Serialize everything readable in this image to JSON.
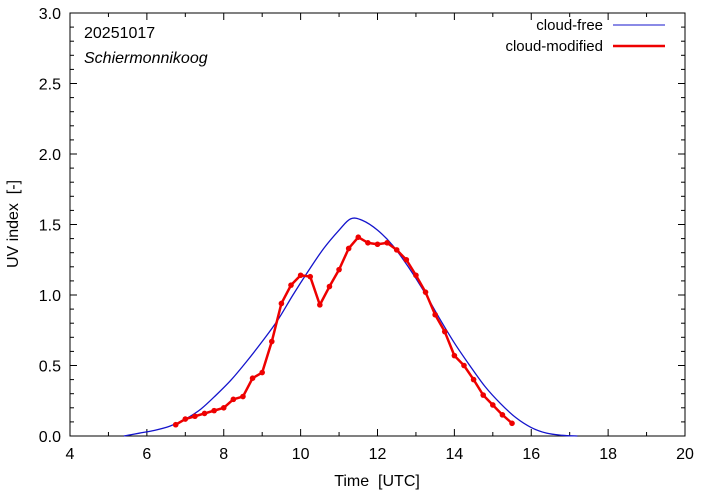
{
  "chart_data": {
    "type": "line",
    "date_label": "20251017",
    "station": "Schiermonnikoog",
    "xlabel": "Time  [UTC]",
    "ylabel": "UV index  [-]",
    "xlim": [
      4,
      20
    ],
    "ylim": [
      0,
      3.0
    ],
    "x_ticks": [
      "4",
      "6",
      "8",
      "10",
      "12",
      "14",
      "16",
      "18",
      "20"
    ],
    "y_ticks": [
      "0.0",
      "0.5",
      "1.0",
      "1.5",
      "2.0",
      "2.5",
      "3.0"
    ],
    "legend_position": "top-right",
    "colors": {
      "cloud_free": "#1414cc",
      "cloud_modified": "#ee0000"
    },
    "series": [
      {
        "name": "cloud-free",
        "style": "line",
        "x": [
          5.4,
          5.8,
          6.2,
          6.6,
          7.0,
          7.4,
          7.8,
          8.2,
          8.6,
          9.0,
          9.4,
          9.8,
          10.2,
          10.6,
          11.0,
          11.3,
          11.6,
          12.0,
          12.4,
          12.8,
          13.2,
          13.6,
          14.0,
          14.4,
          14.8,
          15.2,
          15.6,
          16.0,
          16.4,
          16.8,
          17.2
        ],
        "values": [
          0.0,
          0.02,
          0.04,
          0.07,
          0.12,
          0.19,
          0.29,
          0.4,
          0.53,
          0.67,
          0.82,
          1.0,
          1.17,
          1.33,
          1.46,
          1.54,
          1.53,
          1.46,
          1.35,
          1.2,
          1.03,
          0.84,
          0.66,
          0.5,
          0.35,
          0.23,
          0.13,
          0.06,
          0.02,
          0.005,
          0.0
        ]
      },
      {
        "name": "cloud-modified",
        "style": "line+markers",
        "x": [
          6.75,
          7.0,
          7.25,
          7.5,
          7.75,
          8.0,
          8.25,
          8.5,
          8.75,
          9.0,
          9.25,
          9.5,
          9.75,
          10.0,
          10.25,
          10.5,
          10.75,
          11.0,
          11.25,
          11.5,
          11.75,
          12.0,
          12.25,
          12.5,
          12.75,
          13.0,
          13.25,
          13.5,
          13.75,
          14.0,
          14.25,
          14.5,
          14.75,
          15.0,
          15.25,
          15.5
        ],
        "values": [
          0.08,
          0.12,
          0.14,
          0.16,
          0.18,
          0.2,
          0.26,
          0.28,
          0.41,
          0.45,
          0.67,
          0.94,
          1.07,
          1.14,
          1.13,
          0.93,
          1.06,
          1.18,
          1.33,
          1.41,
          1.37,
          1.36,
          1.37,
          1.32,
          1.25,
          1.14,
          1.02,
          0.86,
          0.74,
          0.57,
          0.5,
          0.4,
          0.29,
          0.22,
          0.15,
          0.09
        ]
      }
    ]
  }
}
